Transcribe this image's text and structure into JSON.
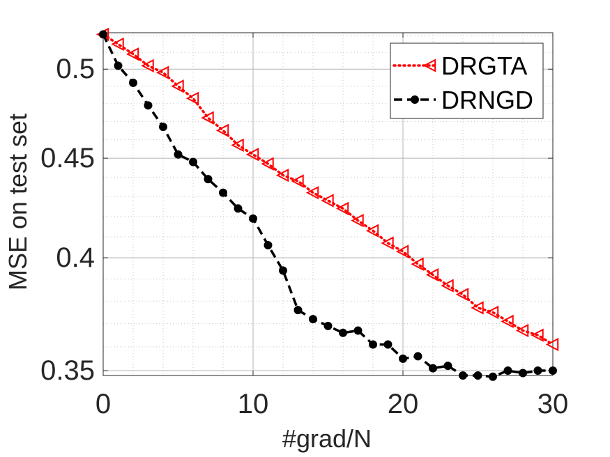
{
  "chart_data": {
    "type": "line",
    "title": "",
    "xlabel": "#grad/N",
    "ylabel": "MSE on test set",
    "xlim": [
      0,
      30
    ],
    "ylim": [
      0.348,
      0.522
    ],
    "yscale": "log",
    "xticks": [
      0,
      10,
      20,
      30
    ],
    "xtick_labels": [
      "0",
      "10",
      "20",
      "30"
    ],
    "yticks": [
      0.35,
      0.4,
      0.45,
      0.5
    ],
    "ytick_labels": [
      "0.35",
      "0.4",
      "0.45",
      "0.5"
    ],
    "grid": true,
    "minor_grid": true,
    "legend_position": "top-right",
    "series": [
      {
        "name": "DRGTA",
        "color": "#ff0000",
        "line_style": "dotted",
        "marker": "triangle-left",
        "x": [
          0,
          1,
          2,
          3,
          4,
          5,
          6,
          7,
          8,
          9,
          10,
          11,
          12,
          13,
          14,
          15,
          16,
          17,
          18,
          19,
          20,
          21,
          22,
          23,
          24,
          25,
          26,
          27,
          28,
          29,
          30
        ],
        "values": [
          0.521,
          0.515,
          0.509,
          0.502,
          0.498,
          0.49,
          0.483,
          0.472,
          0.465,
          0.457,
          0.452,
          0.447,
          0.441,
          0.438,
          0.432,
          0.428,
          0.424,
          0.418,
          0.413,
          0.407,
          0.403,
          0.397,
          0.392,
          0.387,
          0.383,
          0.377,
          0.375,
          0.371,
          0.367,
          0.365,
          0.361
        ]
      },
      {
        "name": "DRNGD",
        "color": "#000000",
        "line_style": "dashed",
        "marker": "circle",
        "x": [
          0,
          1,
          2,
          3,
          4,
          5,
          6,
          7,
          8,
          9,
          10,
          11,
          12,
          13,
          14,
          15,
          16,
          17,
          18,
          19,
          20,
          21,
          22,
          23,
          24,
          25,
          26,
          27,
          28,
          29,
          30
        ],
        "values": [
          0.521,
          0.502,
          0.492,
          0.479,
          0.467,
          0.452,
          0.448,
          0.439,
          0.432,
          0.424,
          0.419,
          0.406,
          0.394,
          0.376,
          0.372,
          0.369,
          0.366,
          0.367,
          0.361,
          0.361,
          0.355,
          0.356,
          0.351,
          0.352,
          0.348,
          0.348,
          0.3475,
          0.35,
          0.349,
          0.35,
          0.35
        ]
      }
    ]
  }
}
